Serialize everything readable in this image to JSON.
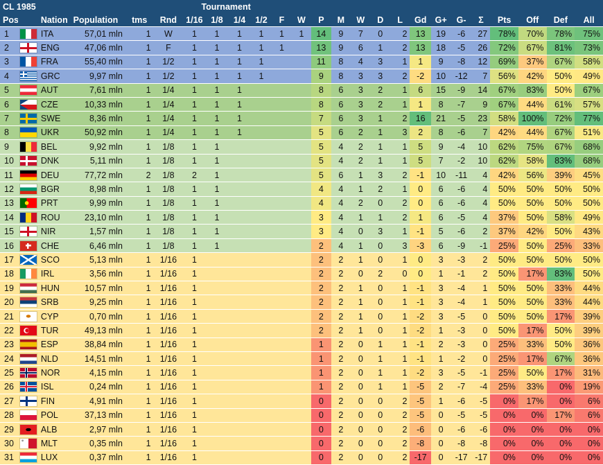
{
  "header": {
    "title": "CL 1985",
    "tournament_label": "Tournament",
    "columns": [
      "Pos",
      "",
      "Nation",
      "Population",
      "tms",
      "Rnd",
      "1/16",
      "1/8",
      "1/4",
      "1/2",
      "F",
      "W",
      "P",
      "M",
      "W",
      "D",
      "L",
      "Gd",
      "G+",
      "G-",
      "Σ",
      "Pts",
      "Off",
      "Def",
      "All"
    ]
  },
  "colors": {
    "header_bg": "#1f4e78",
    "band_1": "#8ea9db",
    "band_2": "#a9d08e",
    "band_3": "#c6e0b4",
    "band_4": "#ffe699",
    "green_strong": "#63be7b",
    "yellow": "#ffeb84",
    "red": "#f8696b"
  },
  "rows": [
    {
      "pos": "1",
      "flag": "ita-flag",
      "nation": "ITA",
      "population": "57,01 mln",
      "tms": "1",
      "rnd": "W",
      "t": [
        "1",
        "1",
        "1",
        "1",
        "1",
        "1"
      ],
      "p": "14",
      "m": "9",
      "w": "7",
      "d": "0",
      "l": "2",
      "gd": "13",
      "gp": "19",
      "gm": "-6",
      "sum": "27",
      "pts": "78%",
      "off": "70%",
      "def": "78%",
      "all": "75%"
    },
    {
      "pos": "2",
      "flag": "eng-flag",
      "nation": "ENG",
      "population": "47,06 mln",
      "tms": "1",
      "rnd": "F",
      "t": [
        "1",
        "1",
        "1",
        "1",
        "1",
        ""
      ],
      "p": "13",
      "m": "9",
      "w": "6",
      "d": "1",
      "l": "2",
      "gd": "13",
      "gp": "18",
      "gm": "-5",
      "sum": "26",
      "pts": "72%",
      "off": "67%",
      "def": "81%",
      "all": "73%"
    },
    {
      "pos": "3",
      "flag": "fra-flag",
      "nation": "FRA",
      "population": "55,40 mln",
      "tms": "1",
      "rnd": "1/2",
      "t": [
        "1",
        "1",
        "1",
        "1",
        "",
        ""
      ],
      "p": "11",
      "m": "8",
      "w": "4",
      "d": "3",
      "l": "1",
      "gd": "1",
      "gp": "9",
      "gm": "-8",
      "sum": "12",
      "pts": "69%",
      "off": "37%",
      "def": "67%",
      "all": "58%"
    },
    {
      "pos": "4",
      "flag": "grc-flag",
      "nation": "GRC",
      "population": "9,97 mln",
      "tms": "1",
      "rnd": "1/2",
      "t": [
        "1",
        "1",
        "1",
        "1",
        "",
        ""
      ],
      "p": "9",
      "m": "8",
      "w": "3",
      "d": "3",
      "l": "2",
      "gd": "-2",
      "gp": "10",
      "gm": "-12",
      "sum": "7",
      "pts": "56%",
      "off": "42%",
      "def": "50%",
      "all": "49%"
    },
    {
      "pos": "5",
      "flag": "aut-flag",
      "nation": "AUT",
      "population": "7,61 mln",
      "tms": "1",
      "rnd": "1/4",
      "t": [
        "1",
        "1",
        "1",
        "",
        "",
        ""
      ],
      "p": "8",
      "m": "6",
      "w": "3",
      "d": "2",
      "l": "1",
      "gd": "6",
      "gp": "15",
      "gm": "-9",
      "sum": "14",
      "pts": "67%",
      "off": "83%",
      "def": "50%",
      "all": "67%"
    },
    {
      "pos": "6",
      "flag": "cze-flag",
      "nation": "CZE",
      "population": "10,33 mln",
      "tms": "1",
      "rnd": "1/4",
      "t": [
        "1",
        "1",
        "1",
        "",
        "",
        ""
      ],
      "p": "8",
      "m": "6",
      "w": "3",
      "d": "2",
      "l": "1",
      "gd": "1",
      "gp": "8",
      "gm": "-7",
      "sum": "9",
      "pts": "67%",
      "off": "44%",
      "def": "61%",
      "all": "57%"
    },
    {
      "pos": "7",
      "flag": "swe-flag",
      "nation": "SWE",
      "population": "8,36 mln",
      "tms": "1",
      "rnd": "1/4",
      "t": [
        "1",
        "1",
        "1",
        "",
        "",
        ""
      ],
      "p": "7",
      "m": "6",
      "w": "3",
      "d": "1",
      "l": "2",
      "gd": "16",
      "gp": "21",
      "gm": "-5",
      "sum": "23",
      "pts": "58%",
      "off": "100%",
      "def": "72%",
      "all": "77%"
    },
    {
      "pos": "8",
      "flag": "ukr-flag",
      "nation": "UKR",
      "population": "50,92 mln",
      "tms": "1",
      "rnd": "1/4",
      "t": [
        "1",
        "1",
        "1",
        "",
        "",
        ""
      ],
      "p": "5",
      "m": "6",
      "w": "2",
      "d": "1",
      "l": "3",
      "gd": "2",
      "gp": "8",
      "gm": "-6",
      "sum": "7",
      "pts": "42%",
      "off": "44%",
      "def": "67%",
      "all": "51%"
    },
    {
      "pos": "9",
      "flag": "bel-flag",
      "nation": "BEL",
      "population": "9,92 mln",
      "tms": "1",
      "rnd": "1/8",
      "t": [
        "1",
        "1",
        "",
        "",
        "",
        ""
      ],
      "p": "5",
      "m": "4",
      "w": "2",
      "d": "1",
      "l": "1",
      "gd": "5",
      "gp": "9",
      "gm": "-4",
      "sum": "10",
      "pts": "62%",
      "off": "75%",
      "def": "67%",
      "all": "68%"
    },
    {
      "pos": "10",
      "flag": "dnk-flag",
      "nation": "DNK",
      "population": "5,11 mln",
      "tms": "1",
      "rnd": "1/8",
      "t": [
        "1",
        "1",
        "",
        "",
        "",
        ""
      ],
      "p": "5",
      "m": "4",
      "w": "2",
      "d": "1",
      "l": "1",
      "gd": "5",
      "gp": "7",
      "gm": "-2",
      "sum": "10",
      "pts": "62%",
      "off": "58%",
      "def": "83%",
      "all": "68%"
    },
    {
      "pos": "11",
      "flag": "deu-flag",
      "nation": "DEU",
      "population": "77,72 mln",
      "tms": "2",
      "rnd": "1/8",
      "t": [
        "2",
        "1",
        "",
        "",
        "",
        ""
      ],
      "p": "5",
      "m": "6",
      "w": "1",
      "d": "3",
      "l": "2",
      "gd": "-1",
      "gp": "10",
      "gm": "-11",
      "sum": "4",
      "pts": "42%",
      "off": "56%",
      "def": "39%",
      "all": "45%"
    },
    {
      "pos": "12",
      "flag": "bgr-flag",
      "nation": "BGR",
      "population": "8,98 mln",
      "tms": "1",
      "rnd": "1/8",
      "t": [
        "1",
        "1",
        "",
        "",
        "",
        ""
      ],
      "p": "4",
      "m": "4",
      "w": "1",
      "d": "2",
      "l": "1",
      "gd": "0",
      "gp": "6",
      "gm": "-6",
      "sum": "4",
      "pts": "50%",
      "off": "50%",
      "def": "50%",
      "all": "50%"
    },
    {
      "pos": "13",
      "flag": "prt-flag",
      "nation": "PRT",
      "population": "9,99 mln",
      "tms": "1",
      "rnd": "1/8",
      "t": [
        "1",
        "1",
        "",
        "",
        "",
        ""
      ],
      "p": "4",
      "m": "4",
      "w": "2",
      "d": "0",
      "l": "2",
      "gd": "0",
      "gp": "6",
      "gm": "-6",
      "sum": "4",
      "pts": "50%",
      "off": "50%",
      "def": "50%",
      "all": "50%"
    },
    {
      "pos": "14",
      "flag": "rou-flag",
      "nation": "ROU",
      "population": "23,10 mln",
      "tms": "1",
      "rnd": "1/8",
      "t": [
        "1",
        "1",
        "",
        "",
        "",
        ""
      ],
      "p": "3",
      "m": "4",
      "w": "1",
      "d": "1",
      "l": "2",
      "gd": "1",
      "gp": "6",
      "gm": "-5",
      "sum": "4",
      "pts": "37%",
      "off": "50%",
      "def": "58%",
      "all": "49%"
    },
    {
      "pos": "15",
      "flag": "nir-flag",
      "nation": "NIR",
      "population": "1,57 mln",
      "tms": "1",
      "rnd": "1/8",
      "t": [
        "1",
        "1",
        "",
        "",
        "",
        ""
      ],
      "p": "3",
      "m": "4",
      "w": "0",
      "d": "3",
      "l": "1",
      "gd": "-1",
      "gp": "5",
      "gm": "-6",
      "sum": "2",
      "pts": "37%",
      "off": "42%",
      "def": "50%",
      "all": "43%"
    },
    {
      "pos": "16",
      "flag": "che-flag",
      "nation": "CHE",
      "population": "6,46 mln",
      "tms": "1",
      "rnd": "1/8",
      "t": [
        "1",
        "1",
        "",
        "",
        "",
        ""
      ],
      "p": "2",
      "m": "4",
      "w": "1",
      "d": "0",
      "l": "3",
      "gd": "-3",
      "gp": "6",
      "gm": "-9",
      "sum": "-1",
      "pts": "25%",
      "off": "50%",
      "def": "25%",
      "all": "33%"
    },
    {
      "pos": "17",
      "flag": "sco-flag",
      "nation": "SCO",
      "population": "5,13 mln",
      "tms": "1",
      "rnd": "1/16",
      "t": [
        "1",
        "",
        "",
        "",
        "",
        ""
      ],
      "p": "2",
      "m": "2",
      "w": "1",
      "d": "0",
      "l": "1",
      "gd": "0",
      "gp": "3",
      "gm": "-3",
      "sum": "2",
      "pts": "50%",
      "off": "50%",
      "def": "50%",
      "all": "50%"
    },
    {
      "pos": "18",
      "flag": "irl-flag",
      "nation": "IRL",
      "population": "3,56 mln",
      "tms": "1",
      "rnd": "1/16",
      "t": [
        "1",
        "",
        "",
        "",
        "",
        ""
      ],
      "p": "2",
      "m": "2",
      "w": "0",
      "d": "2",
      "l": "0",
      "gd": "0",
      "gp": "1",
      "gm": "-1",
      "sum": "2",
      "pts": "50%",
      "off": "17%",
      "def": "83%",
      "all": "50%"
    },
    {
      "pos": "19",
      "flag": "hun-flag",
      "nation": "HUN",
      "population": "10,57 mln",
      "tms": "1",
      "rnd": "1/16",
      "t": [
        "1",
        "",
        "",
        "",
        "",
        ""
      ],
      "p": "2",
      "m": "2",
      "w": "1",
      "d": "0",
      "l": "1",
      "gd": "-1",
      "gp": "3",
      "gm": "-4",
      "sum": "1",
      "pts": "50%",
      "off": "50%",
      "def": "33%",
      "all": "44%"
    },
    {
      "pos": "20",
      "flag": "srb-flag",
      "nation": "SRB",
      "population": "9,25 mln",
      "tms": "1",
      "rnd": "1/16",
      "t": [
        "1",
        "",
        "",
        "",
        "",
        ""
      ],
      "p": "2",
      "m": "2",
      "w": "1",
      "d": "0",
      "l": "1",
      "gd": "-1",
      "gp": "3",
      "gm": "-4",
      "sum": "1",
      "pts": "50%",
      "off": "50%",
      "def": "33%",
      "all": "44%"
    },
    {
      "pos": "21",
      "flag": "cyp-flag",
      "nation": "CYP",
      "population": "0,70 mln",
      "tms": "1",
      "rnd": "1/16",
      "t": [
        "1",
        "",
        "",
        "",
        "",
        ""
      ],
      "p": "2",
      "m": "2",
      "w": "1",
      "d": "0",
      "l": "1",
      "gd": "-2",
      "gp": "3",
      "gm": "-5",
      "sum": "0",
      "pts": "50%",
      "off": "50%",
      "def": "17%",
      "all": "39%"
    },
    {
      "pos": "22",
      "flag": "tur-flag",
      "nation": "TUR",
      "population": "49,13 mln",
      "tms": "1",
      "rnd": "1/16",
      "t": [
        "1",
        "",
        "",
        "",
        "",
        ""
      ],
      "p": "2",
      "m": "2",
      "w": "1",
      "d": "0",
      "l": "1",
      "gd": "-2",
      "gp": "1",
      "gm": "-3",
      "sum": "0",
      "pts": "50%",
      "off": "17%",
      "def": "50%",
      "all": "39%"
    },
    {
      "pos": "23",
      "flag": "esp-flag",
      "nation": "ESP",
      "population": "38,84 mln",
      "tms": "1",
      "rnd": "1/16",
      "t": [
        "1",
        "",
        "",
        "",
        "",
        ""
      ],
      "p": "1",
      "m": "2",
      "w": "0",
      "d": "1",
      "l": "1",
      "gd": "-1",
      "gp": "2",
      "gm": "-3",
      "sum": "0",
      "pts": "25%",
      "off": "33%",
      "def": "50%",
      "all": "36%"
    },
    {
      "pos": "24",
      "flag": "nld-flag",
      "nation": "NLD",
      "population": "14,51 mln",
      "tms": "1",
      "rnd": "1/16",
      "t": [
        "1",
        "",
        "",
        "",
        "",
        ""
      ],
      "p": "1",
      "m": "2",
      "w": "0",
      "d": "1",
      "l": "1",
      "gd": "-1",
      "gp": "1",
      "gm": "-2",
      "sum": "0",
      "pts": "25%",
      "off": "17%",
      "def": "67%",
      "all": "36%"
    },
    {
      "pos": "25",
      "flag": "nor-flag",
      "nation": "NOR",
      "population": "4,15 mln",
      "tms": "1",
      "rnd": "1/16",
      "t": [
        "1",
        "",
        "",
        "",
        "",
        ""
      ],
      "p": "1",
      "m": "2",
      "w": "0",
      "d": "1",
      "l": "1",
      "gd": "-2",
      "gp": "3",
      "gm": "-5",
      "sum": "-1",
      "pts": "25%",
      "off": "50%",
      "def": "17%",
      "all": "31%"
    },
    {
      "pos": "26",
      "flag": "isl-flag",
      "nation": "ISL",
      "population": "0,24 mln",
      "tms": "1",
      "rnd": "1/16",
      "t": [
        "1",
        "",
        "",
        "",
        "",
        ""
      ],
      "p": "1",
      "m": "2",
      "w": "0",
      "d": "1",
      "l": "1",
      "gd": "-5",
      "gp": "2",
      "gm": "-7",
      "sum": "-4",
      "pts": "25%",
      "off": "33%",
      "def": "0%",
      "all": "19%"
    },
    {
      "pos": "27",
      "flag": "fin-flag",
      "nation": "FIN",
      "population": "4,91 mln",
      "tms": "1",
      "rnd": "1/16",
      "t": [
        "1",
        "",
        "",
        "",
        "",
        ""
      ],
      "p": "0",
      "m": "2",
      "w": "0",
      "d": "0",
      "l": "2",
      "gd": "-5",
      "gp": "1",
      "gm": "-6",
      "sum": "-5",
      "pts": "0%",
      "off": "17%",
      "def": "0%",
      "all": "6%"
    },
    {
      "pos": "28",
      "flag": "pol-flag",
      "nation": "POL",
      "population": "37,13 mln",
      "tms": "1",
      "rnd": "1/16",
      "t": [
        "1",
        "",
        "",
        "",
        "",
        ""
      ],
      "p": "0",
      "m": "2",
      "w": "0",
      "d": "0",
      "l": "2",
      "gd": "-5",
      "gp": "0",
      "gm": "-5",
      "sum": "-5",
      "pts": "0%",
      "off": "0%",
      "def": "17%",
      "all": "6%"
    },
    {
      "pos": "29",
      "flag": "alb-flag",
      "nation": "ALB",
      "population": "2,97 mln",
      "tms": "1",
      "rnd": "1/16",
      "t": [
        "1",
        "",
        "",
        "",
        "",
        ""
      ],
      "p": "0",
      "m": "2",
      "w": "0",
      "d": "0",
      "l": "2",
      "gd": "-6",
      "gp": "0",
      "gm": "-6",
      "sum": "-6",
      "pts": "0%",
      "off": "0%",
      "def": "0%",
      "all": "0%"
    },
    {
      "pos": "30",
      "flag": "mlt-flag",
      "nation": "MLT",
      "population": "0,35 mln",
      "tms": "1",
      "rnd": "1/16",
      "t": [
        "1",
        "",
        "",
        "",
        "",
        ""
      ],
      "p": "0",
      "m": "2",
      "w": "0",
      "d": "0",
      "l": "2",
      "gd": "-8",
      "gp": "0",
      "gm": "-8",
      "sum": "-8",
      "pts": "0%",
      "off": "0%",
      "def": "0%",
      "all": "0%"
    },
    {
      "pos": "31",
      "flag": "lux-flag",
      "nation": "LUX",
      "population": "0,37 mln",
      "tms": "1",
      "rnd": "1/16",
      "t": [
        "1",
        "",
        "",
        "",
        "",
        ""
      ],
      "p": "0",
      "m": "2",
      "w": "0",
      "d": "0",
      "l": "2",
      "gd": "-17",
      "gp": "0",
      "gm": "-17",
      "sum": "-17",
      "pts": "0%",
      "off": "0%",
      "def": "0%",
      "all": "0%"
    }
  ]
}
